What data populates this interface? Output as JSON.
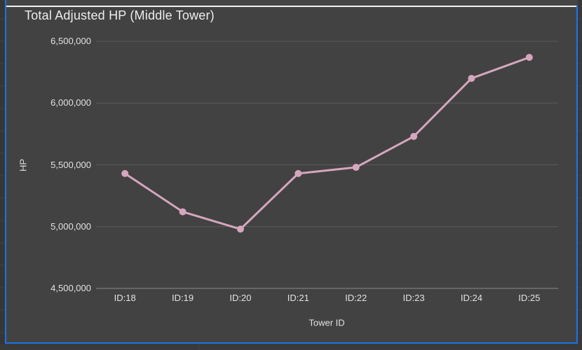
{
  "chart_data": {
    "type": "line",
    "title": "Total Adjusted HP (Middle Tower)",
    "xlabel": "Tower ID",
    "ylabel": "HP",
    "categories": [
      "ID:18",
      "ID:19",
      "ID:20",
      "ID:21",
      "ID:22",
      "ID:23",
      "ID:24",
      "ID:25"
    ],
    "series": [
      {
        "name": "Total Adjusted HP",
        "values": [
          5430000,
          5120000,
          4980000,
          5430000,
          5480000,
          5730000,
          6200000,
          6370000
        ]
      }
    ],
    "ylim": [
      4500000,
      6500000
    ],
    "yticks": [
      4500000,
      5000000,
      5500000,
      6000000,
      6500000
    ],
    "ytick_labels": [
      "4,500,000",
      "5,000,000",
      "5,500,000",
      "6,000,000",
      "6,500,000"
    ],
    "grid": "horizontal",
    "legend": "none",
    "colors": {
      "series": "#d5a6bd",
      "panel_background": "#424242",
      "sheet_background": "#3a3a3a",
      "gridline": "#5a5a5a",
      "axis_line": "#8a8a8a",
      "text": "#e2e2e2",
      "title_text": "#ededed",
      "selection_border": "#1a73e8",
      "top_divider": "#f2f2f2"
    }
  }
}
